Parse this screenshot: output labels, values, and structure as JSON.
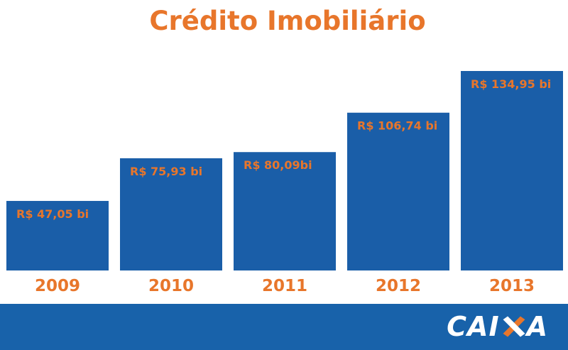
{
  "chart_data": {
    "type": "bar",
    "title": "Crédito Imobiliário",
    "categories": [
      "2009",
      "2010",
      "2011",
      "2012",
      "2013"
    ],
    "values": [
      47.05,
      75.93,
      80.09,
      106.74,
      134.95
    ],
    "data_labels": [
      "R$ 47,05 bi",
      "R$ 75,93 bi",
      "R$ 80,09bi",
      "R$ 106,74 bi",
      "R$ 134,95 bi"
    ],
    "xlabel": "",
    "ylabel": "",
    "ylim": [
      0,
      134.95
    ],
    "grid": false,
    "legend": "none",
    "colors": {
      "bar": "#1a5ea8",
      "text": "#e8762b",
      "footer": "#1862aa"
    }
  },
  "footer": {
    "logo_left": "CAI",
    "logo_right": "A"
  }
}
